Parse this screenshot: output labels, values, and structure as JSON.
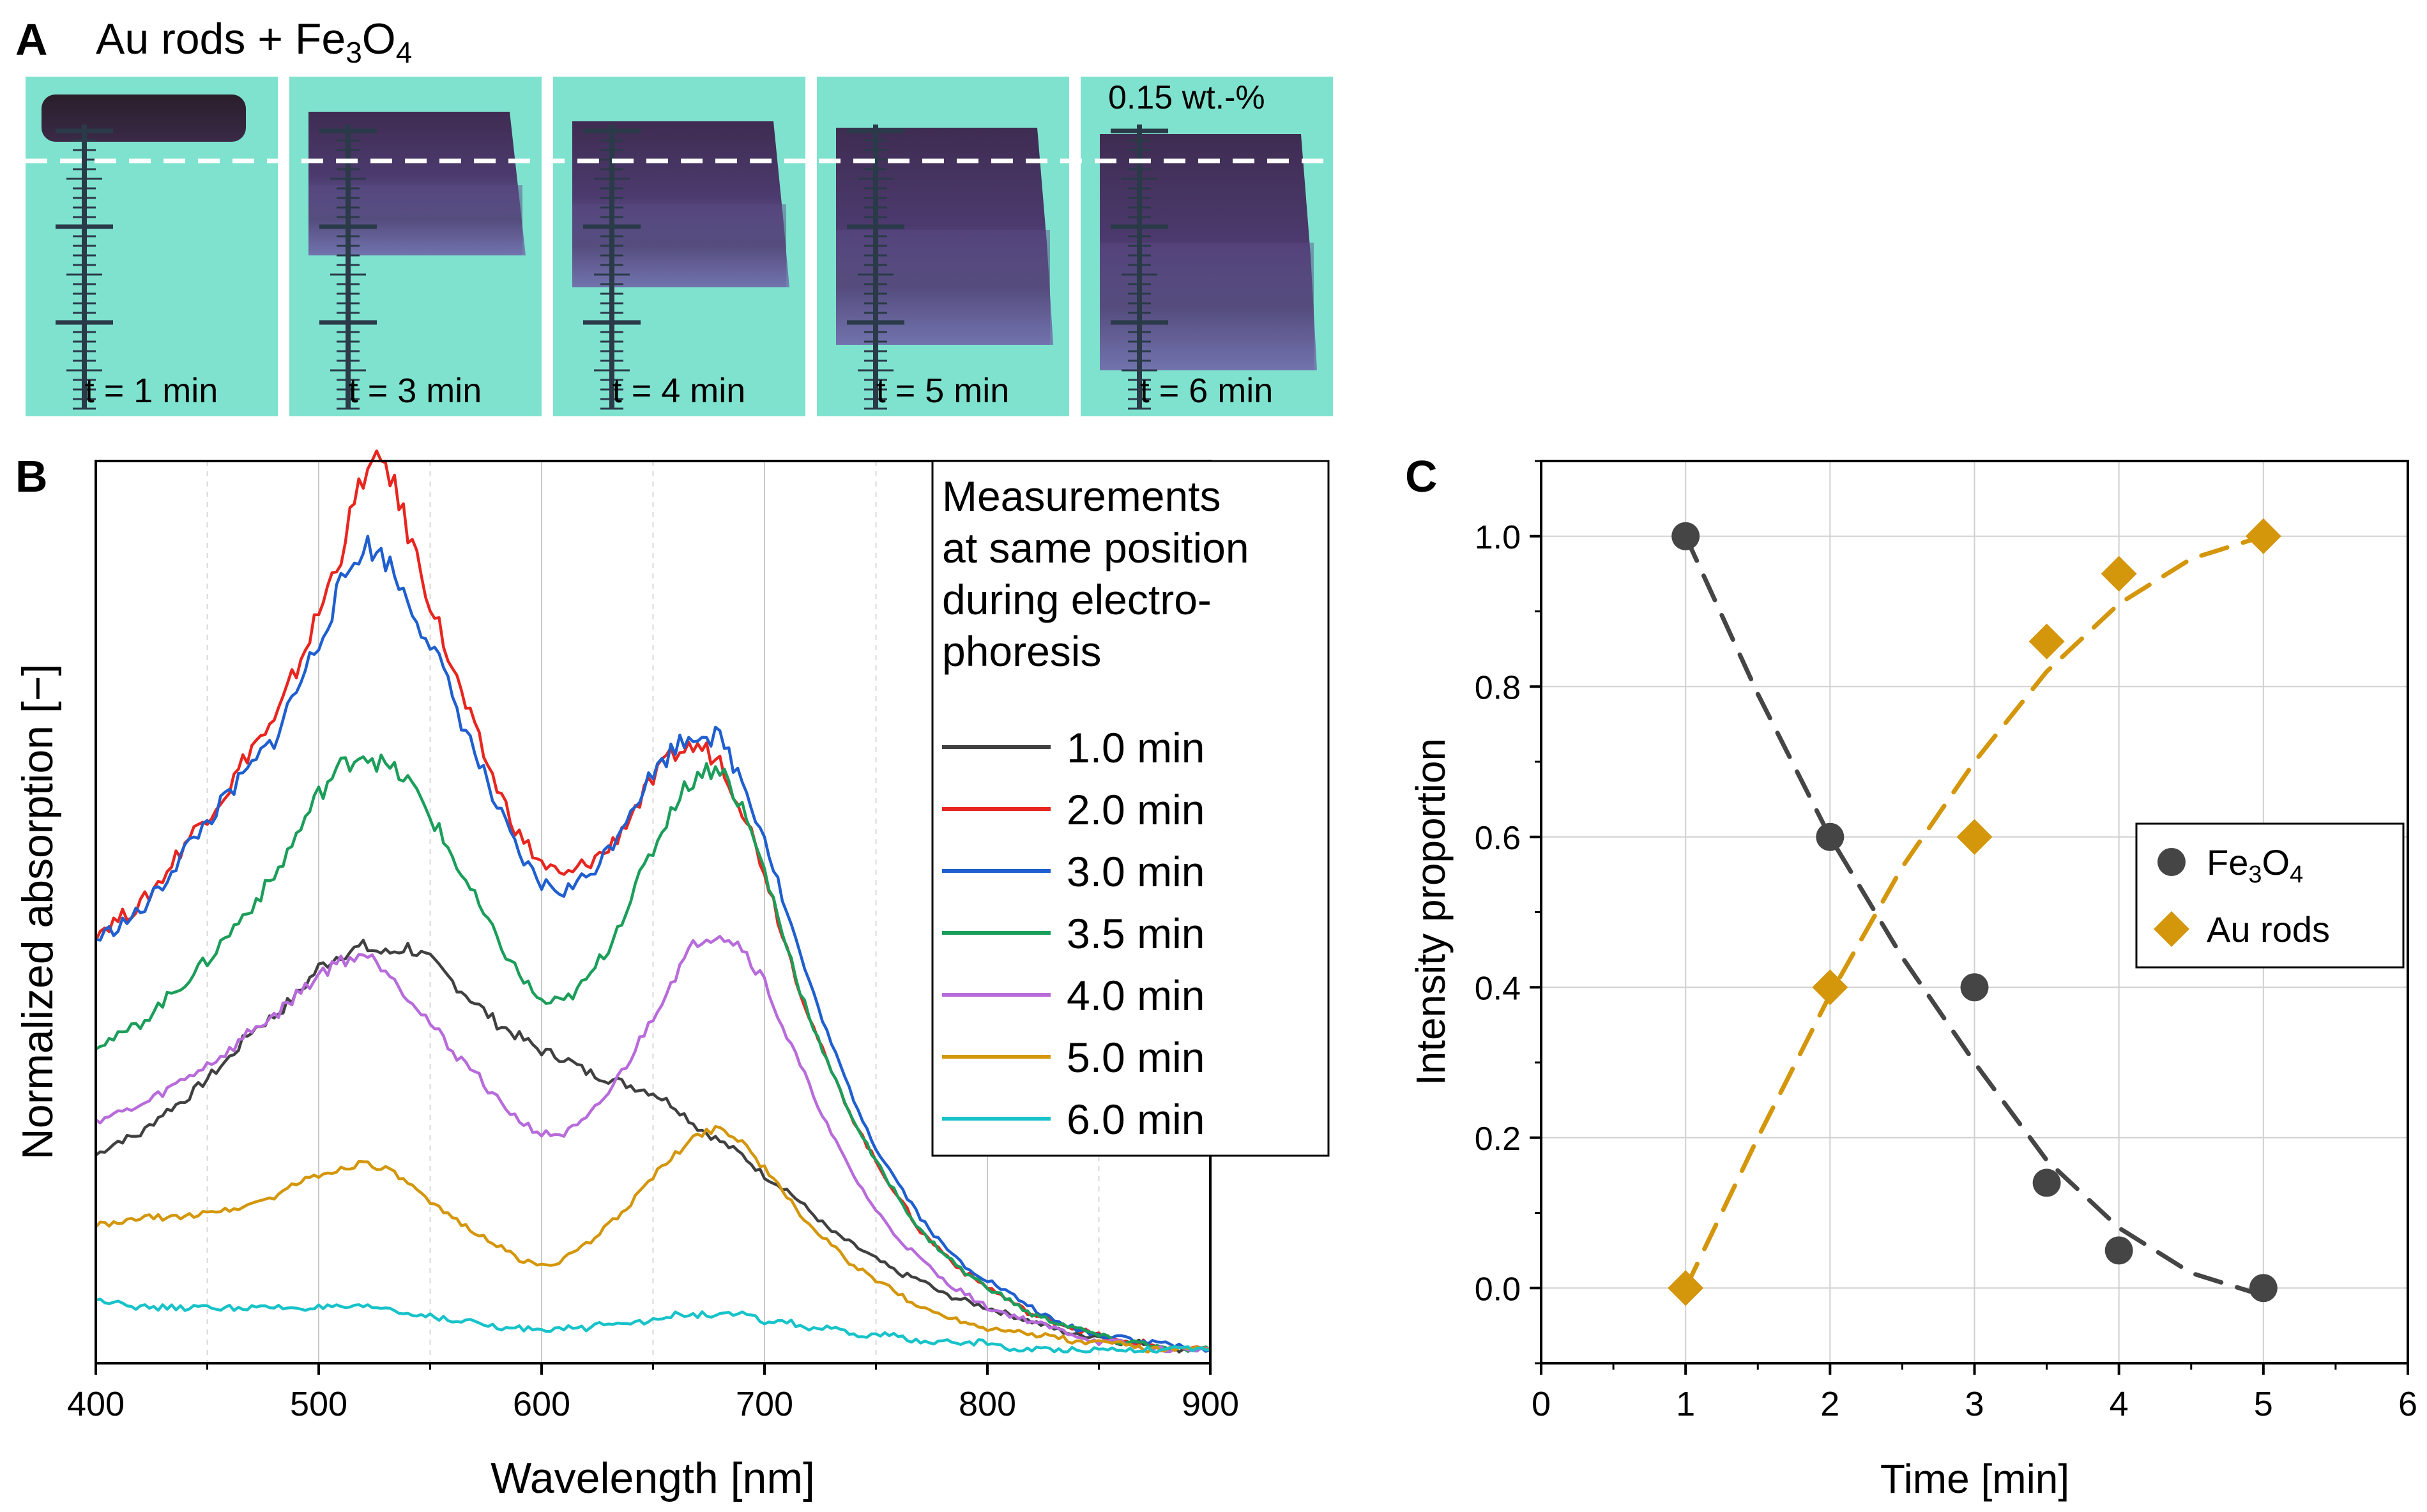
{
  "panel_a": {
    "letter": "A",
    "title_main": "Au rods + Fe",
    "title_sub1": "3",
    "title_mid": "O",
    "title_sub2": "4",
    "concentration_label": "0.15 wt.-%",
    "frames": [
      {
        "label": "t = 1 min"
      },
      {
        "label": "t = 3 min"
      },
      {
        "label": "t = 4 min"
      },
      {
        "label": "t = 5 min"
      },
      {
        "label": "t = 6 min"
      }
    ],
    "colors": {
      "background": "#7fe2cf",
      "band_dark": "#2a1e2a",
      "band_purple": "#5a4a86",
      "band_lilac": "#6f62a8"
    }
  },
  "chart_data": [
    {
      "panel": "B",
      "type": "line",
      "xlabel": "Wavelength [nm]",
      "ylabel": "Normalized absorption [−]",
      "xlim": [
        400,
        900
      ],
      "xticks": [
        "400",
        "500",
        "600",
        "700",
        "800",
        "900"
      ],
      "ylim": [
        0,
        1.3
      ],
      "y_tick_labels": "none",
      "grid": true,
      "legend_title_lines": [
        "Measurements",
        "at same position",
        "during electro-",
        "phoresis"
      ],
      "legend_position": "top-right",
      "x": [
        400,
        410,
        420,
        430,
        440,
        450,
        460,
        470,
        480,
        490,
        500,
        510,
        520,
        530,
        540,
        550,
        560,
        570,
        580,
        590,
        600,
        610,
        620,
        630,
        640,
        650,
        660,
        670,
        680,
        690,
        700,
        710,
        720,
        730,
        740,
        750,
        760,
        770,
        780,
        790,
        800,
        810,
        820,
        830,
        840,
        850,
        860,
        870,
        880,
        890,
        900
      ],
      "series": [
        {
          "name": "1.0 min",
          "color": "#404040",
          "values": [
            0.3,
            0.32,
            0.33,
            0.36,
            0.38,
            0.41,
            0.44,
            0.48,
            0.5,
            0.53,
            0.57,
            0.59,
            0.6,
            0.59,
            0.6,
            0.58,
            0.55,
            0.52,
            0.49,
            0.47,
            0.45,
            0.44,
            0.42,
            0.41,
            0.4,
            0.39,
            0.37,
            0.34,
            0.32,
            0.3,
            0.27,
            0.25,
            0.22,
            0.19,
            0.17,
            0.15,
            0.13,
            0.12,
            0.1,
            0.09,
            0.08,
            0.07,
            0.06,
            0.05,
            0.04,
            0.04,
            0.03,
            0.03,
            0.02,
            0.02,
            0.02
          ]
        },
        {
          "name": "2.0 min",
          "color": "#e8261f",
          "values": [
            0.62,
            0.64,
            0.66,
            0.7,
            0.75,
            0.79,
            0.83,
            0.89,
            0.92,
            1.0,
            1.08,
            1.17,
            1.28,
            1.3,
            1.2,
            1.1,
            1.0,
            0.91,
            0.83,
            0.76,
            0.72,
            0.7,
            0.72,
            0.74,
            0.79,
            0.84,
            0.88,
            0.89,
            0.87,
            0.8,
            0.71,
            0.6,
            0.5,
            0.42,
            0.35,
            0.29,
            0.24,
            0.19,
            0.16,
            0.13,
            0.11,
            0.09,
            0.07,
            0.06,
            0.05,
            0.04,
            0.03,
            0.03,
            0.02,
            0.02,
            0.02
          ]
        },
        {
          "name": "3.0 min",
          "color": "#1f5fcf",
          "values": [
            0.61,
            0.63,
            0.65,
            0.69,
            0.74,
            0.78,
            0.82,
            0.86,
            0.9,
            0.97,
            1.04,
            1.12,
            1.18,
            1.16,
            1.1,
            1.04,
            0.96,
            0.88,
            0.8,
            0.73,
            0.69,
            0.68,
            0.7,
            0.74,
            0.8,
            0.85,
            0.89,
            0.91,
            0.9,
            0.84,
            0.76,
            0.65,
            0.55,
            0.46,
            0.38,
            0.31,
            0.26,
            0.21,
            0.17,
            0.14,
            0.12,
            0.1,
            0.08,
            0.06,
            0.05,
            0.04,
            0.04,
            0.03,
            0.03,
            0.02,
            0.02
          ]
        },
        {
          "name": "3.5 min",
          "color": "#1b9e5a",
          "values": [
            0.46,
            0.47,
            0.49,
            0.52,
            0.55,
            0.58,
            0.62,
            0.66,
            0.7,
            0.76,
            0.82,
            0.86,
            0.88,
            0.86,
            0.84,
            0.79,
            0.73,
            0.67,
            0.61,
            0.56,
            0.52,
            0.52,
            0.55,
            0.6,
            0.67,
            0.74,
            0.81,
            0.85,
            0.86,
            0.8,
            0.71,
            0.6,
            0.5,
            0.42,
            0.35,
            0.29,
            0.24,
            0.19,
            0.16,
            0.13,
            0.11,
            0.09,
            0.07,
            0.06,
            0.05,
            0.04,
            0.03,
            0.03,
            0.02,
            0.02,
            0.02
          ]
        },
        {
          "name": "4.0 min",
          "color": "#b86bdb",
          "values": [
            0.35,
            0.36,
            0.37,
            0.39,
            0.41,
            0.43,
            0.45,
            0.48,
            0.5,
            0.53,
            0.56,
            0.58,
            0.59,
            0.57,
            0.53,
            0.49,
            0.45,
            0.42,
            0.38,
            0.35,
            0.33,
            0.33,
            0.35,
            0.39,
            0.44,
            0.5,
            0.56,
            0.61,
            0.62,
            0.6,
            0.55,
            0.47,
            0.4,
            0.33,
            0.27,
            0.22,
            0.18,
            0.15,
            0.12,
            0.1,
            0.08,
            0.07,
            0.06,
            0.05,
            0.04,
            0.03,
            0.03,
            0.02,
            0.02,
            0.02,
            0.02
          ]
        },
        {
          "name": "5.0 min",
          "color": "#d4960a",
          "values": [
            0.2,
            0.2,
            0.21,
            0.21,
            0.21,
            0.22,
            0.22,
            0.23,
            0.24,
            0.26,
            0.27,
            0.28,
            0.29,
            0.28,
            0.26,
            0.23,
            0.21,
            0.19,
            0.17,
            0.15,
            0.14,
            0.15,
            0.17,
            0.2,
            0.23,
            0.27,
            0.3,
            0.33,
            0.34,
            0.32,
            0.28,
            0.24,
            0.2,
            0.17,
            0.14,
            0.12,
            0.1,
            0.08,
            0.07,
            0.06,
            0.05,
            0.05,
            0.04,
            0.04,
            0.03,
            0.03,
            0.03,
            0.02,
            0.02,
            0.02,
            0.02
          ]
        },
        {
          "name": "6.0 min",
          "color": "#17c3c9",
          "values": [
            0.09,
            0.09,
            0.08,
            0.08,
            0.08,
            0.08,
            0.08,
            0.08,
            0.08,
            0.08,
            0.08,
            0.08,
            0.08,
            0.08,
            0.07,
            0.07,
            0.06,
            0.06,
            0.05,
            0.05,
            0.05,
            0.05,
            0.05,
            0.06,
            0.06,
            0.06,
            0.07,
            0.07,
            0.07,
            0.07,
            0.06,
            0.06,
            0.05,
            0.05,
            0.04,
            0.04,
            0.04,
            0.03,
            0.03,
            0.03,
            0.03,
            0.02,
            0.02,
            0.02,
            0.02,
            0.02,
            0.02,
            0.02,
            0.02,
            0.02,
            0.02
          ]
        }
      ]
    },
    {
      "panel": "C",
      "type": "scatter",
      "xlabel": "Time [min]",
      "ylabel": "Intensity proportion",
      "xlim": [
        0,
        6
      ],
      "ylim": [
        -0.1,
        1.1
      ],
      "xticks": [
        0,
        1,
        2,
        3,
        4,
        5,
        6
      ],
      "yticks": [
        0.0,
        0.2,
        0.4,
        0.6,
        0.8,
        1.0
      ],
      "grid": true,
      "legend_position": "right",
      "series": [
        {
          "name": "Fe3O4",
          "color": "#454545",
          "marker": "circle",
          "x": [
            1,
            2,
            3,
            3.5,
            4,
            5
          ],
          "values": [
            1.0,
            0.6,
            0.4,
            0.14,
            0.05,
            0.0
          ],
          "fit_x": [
            1,
            1.5,
            2,
            2.5,
            3,
            3.5,
            4,
            4.5,
            5
          ],
          "fit_y": [
            1.0,
            0.79,
            0.6,
            0.44,
            0.3,
            0.17,
            0.08,
            0.02,
            -0.01
          ]
        },
        {
          "name": "Au rods",
          "color": "#d4960a",
          "marker": "diamond",
          "x": [
            1,
            2,
            3,
            3.5,
            4,
            5
          ],
          "values": [
            0.0,
            0.4,
            0.6,
            0.86,
            0.95,
            1.0
          ],
          "fit_x": [
            1,
            1.5,
            2,
            2.5,
            3,
            3.5,
            4,
            4.5,
            5
          ],
          "fit_y": [
            0.0,
            0.2,
            0.39,
            0.56,
            0.7,
            0.82,
            0.91,
            0.97,
            1.0
          ]
        }
      ]
    }
  ]
}
